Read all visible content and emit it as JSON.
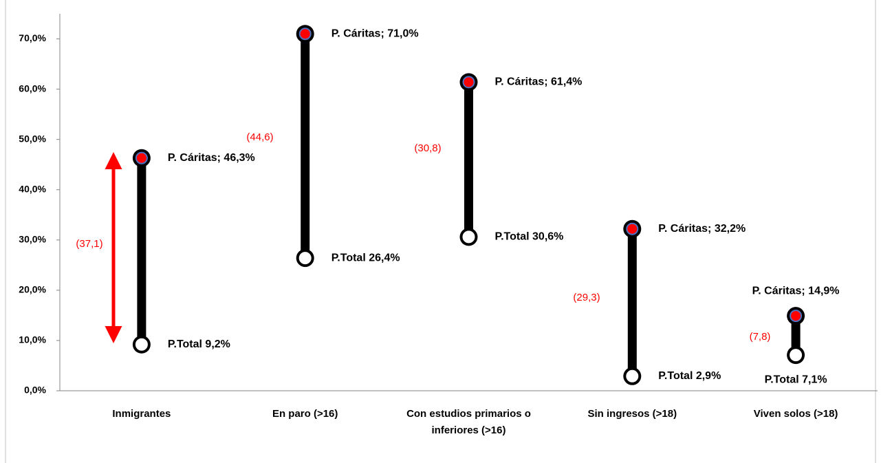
{
  "chart_data": {
    "type": "dumbbell",
    "categories": [
      "Inmigrantes",
      "En paro (>16)",
      "Con estudios primarios o inferiores (>16)",
      "Sin ingresos (>18)",
      "Viven solos (>18)"
    ],
    "series": [
      {
        "name": "P. Cáritas",
        "color": "#ff0000",
        "values": [
          46.3,
          71.0,
          61.4,
          32.2,
          14.9
        ],
        "value_labels": [
          "P. Cáritas; 46,3%",
          "P. Cáritas; 71,0%",
          "P. Cáritas; 61,4%",
          "P. Cáritas; 32,2%",
          "P. Cáritas; 14,9%"
        ]
      },
      {
        "name": "P.Total",
        "color": "#ffffff",
        "values": [
          9.2,
          26.4,
          30.6,
          2.9,
          7.1
        ],
        "value_labels": [
          "P.Total 9,2%",
          "P.Total 26,4%",
          "P.Total 30,6%",
          "P.Total 2,9%",
          "P.Total 7,1%"
        ]
      }
    ],
    "annotations": [
      "(37,1)",
      "(44,6)",
      "(30,8)",
      "(29,3)",
      "(7,8)"
    ],
    "ylim": [
      0,
      75
    ],
    "yticks": [
      {
        "value": 0,
        "label": "0,0%"
      },
      {
        "value": 10,
        "label": "10,0%"
      },
      {
        "value": 20,
        "label": "20,0%"
      },
      {
        "value": 30,
        "label": "30,0%"
      },
      {
        "value": 40,
        "label": "40,0%"
      },
      {
        "value": 50,
        "label": "50,0%"
      },
      {
        "value": 60,
        "label": "60,0%"
      },
      {
        "value": 70,
        "label": "70,0%"
      }
    ]
  }
}
